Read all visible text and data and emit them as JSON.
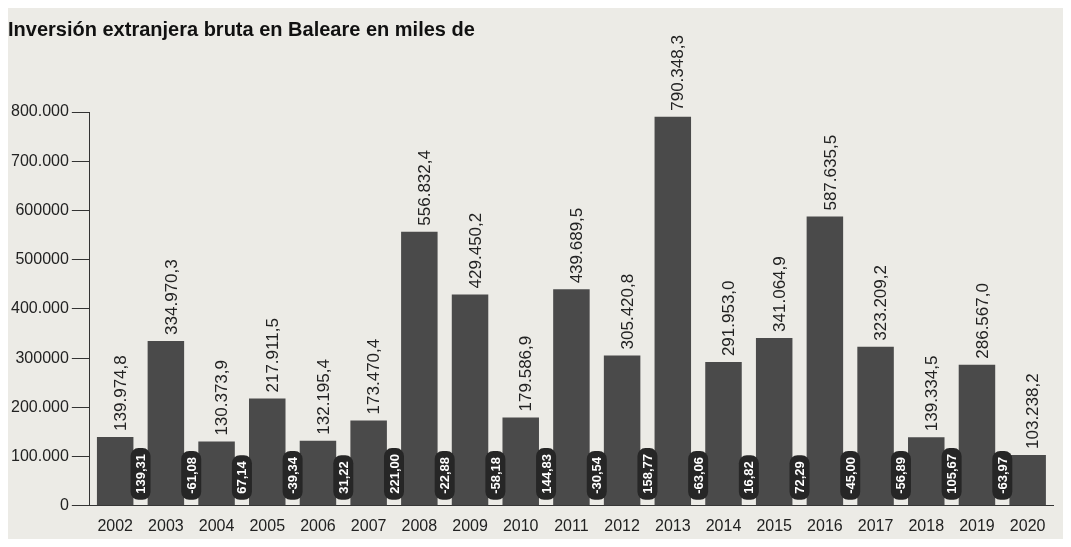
{
  "chart_data": {
    "type": "bar",
    "title": "Inversión extranjera bruta en Baleare en miles de",
    "categories": [
      "2002",
      "2003",
      "2004",
      "2005",
      "2006",
      "2007",
      "2008",
      "2009",
      "2010",
      "2011",
      "2012",
      "2013",
      "2014",
      "2015",
      "2016",
      "2017",
      "2018",
      "2019",
      "2020"
    ],
    "values": [
      139974.8,
      334970.3,
      130373.9,
      217911.5,
      132195.4,
      173470.4,
      556832.4,
      429450.2,
      179586.9,
      439689.5,
      305420.8,
      790348.3,
      291953.0,
      341064.9,
      587635.5,
      323209.2,
      139334.5,
      286567.0,
      103238.2
    ],
    "value_labels": [
      "139.974,8",
      "334.970,3",
      "130.373,9",
      "217.911,5",
      "132.195,4",
      "173.470,4",
      "556.832,4",
      "429.450,2",
      "179.586,9",
      "439.689,5",
      "305.420,8",
      "790.348,3",
      "291.953,0",
      "341.064,9",
      "587.635,5",
      "323.209,2",
      "139.334,5",
      "286.567,0",
      "103.238,2"
    ],
    "color": "#4a4a4a",
    "ylim": [
      0,
      800000
    ],
    "yticks": [
      0,
      {
        "value": 100000,
        "label": "100.000"
      },
      {
        "value": 200000,
        "label": "200.000"
      },
      {
        "value": 300000,
        "label": "300000"
      },
      {
        "value": 400000,
        "label": "400.000"
      },
      {
        "value": 500000,
        "label": "500000"
      },
      {
        "value": 600000,
        "label": "600000"
      },
      {
        "value": 700000,
        "label": "700.000"
      },
      {
        "value": 800000,
        "label": "800.000"
      }
    ],
    "annotations": [
      "139,31",
      "-61,08",
      "67,14",
      "-39,34",
      "31,22",
      "221,00",
      "-22,88",
      "-58,18",
      "144,83",
      "-30,54",
      "158,77",
      "-63,06",
      "16,82",
      "72,29",
      "-45,00",
      "-56,89",
      "105,67",
      "-63,97"
    ]
  }
}
